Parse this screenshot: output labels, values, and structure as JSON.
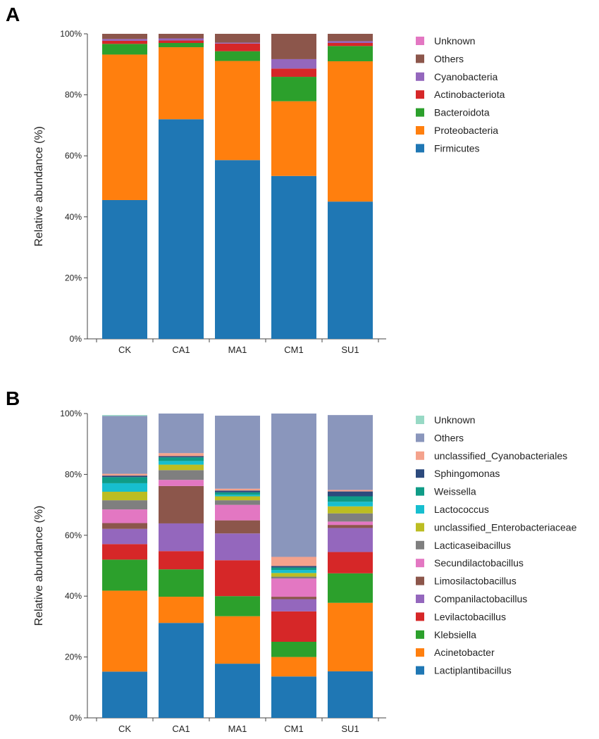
{
  "chart_data": [
    {
      "panel": "A",
      "type": "bar",
      "stacked": true,
      "ylabel": "Relative abundance (%)",
      "ylim": [
        0,
        100
      ],
      "yticks": [
        "0%",
        "20%",
        "40%",
        "60%",
        "80%",
        "100%"
      ],
      "categories": [
        "CK",
        "CA1",
        "MA1",
        "CM1",
        "SU1"
      ],
      "legend_position": "right",
      "series": [
        {
          "name": "Firmicutes",
          "color": "#1f77b4",
          "values": [
            45.5,
            72.0,
            58.6,
            53.4,
            45.0
          ]
        },
        {
          "name": "Proteobacteria",
          "color": "#ff7f0e",
          "values": [
            47.7,
            23.6,
            32.5,
            24.5,
            46.0
          ]
        },
        {
          "name": "Bacteroidota",
          "color": "#2ca02c",
          "values": [
            3.5,
            1.4,
            3.2,
            8.0,
            5.0
          ]
        },
        {
          "name": "Actinobacteriota",
          "color": "#d62728",
          "values": [
            1.0,
            0.8,
            2.5,
            2.7,
            1.0
          ]
        },
        {
          "name": "Cyanobacteria",
          "color": "#9467bd",
          "values": [
            0.6,
            0.7,
            0.3,
            3.1,
            0.6
          ]
        },
        {
          "name": "Others",
          "color": "#8c564b",
          "values": [
            1.7,
            1.5,
            2.9,
            8.3,
            2.4
          ]
        },
        {
          "name": "Unknown",
          "color": "#e377c2",
          "values": [
            0,
            0,
            0,
            0,
            0
          ]
        }
      ]
    },
    {
      "panel": "B",
      "type": "bar",
      "stacked": true,
      "ylabel": "Relative abundance (%)",
      "ylim": [
        0,
        100
      ],
      "yticks": [
        "0%",
        "20%",
        "40%",
        "60%",
        "80%",
        "100%"
      ],
      "categories": [
        "CK",
        "CA1",
        "MA1",
        "CM1",
        "SU1"
      ],
      "legend_position": "right",
      "series": [
        {
          "name": "Lactiplantibacillus",
          "color": "#1f77b4",
          "values": [
            15.2,
            31.2,
            17.8,
            13.6,
            15.3
          ]
        },
        {
          "name": "Acinetobacter",
          "color": "#ff7f0e",
          "values": [
            26.6,
            8.6,
            15.6,
            6.4,
            22.5
          ]
        },
        {
          "name": "Klebsiella",
          "color": "#2ca02c",
          "values": [
            10.2,
            9.0,
            6.6,
            5.0,
            9.7
          ]
        },
        {
          "name": "Levilactobacillus",
          "color": "#d62728",
          "values": [
            5.1,
            6.0,
            11.8,
            10.0,
            7.0
          ]
        },
        {
          "name": "Companilactobacillus",
          "color": "#9467bd",
          "values": [
            5.0,
            9.1,
            8.8,
            4.0,
            7.9
          ]
        },
        {
          "name": "Limosilactobacillus",
          "color": "#8c564b",
          "values": [
            1.9,
            12.3,
            4.3,
            0.8,
            1.0
          ]
        },
        {
          "name": "Secundilactobacillus",
          "color": "#e377c2",
          "values": [
            4.5,
            2.0,
            5.1,
            6.0,
            1.1
          ]
        },
        {
          "name": "Lacticaseibacillus",
          "color": "#7f7f7f",
          "values": [
            3.0,
            3.2,
            1.5,
            0.6,
            2.7
          ]
        },
        {
          "name": "unclassified_Enterobacteriaceae",
          "color": "#bcbd22",
          "values": [
            2.8,
            1.8,
            1.3,
            1.2,
            2.3
          ]
        },
        {
          "name": "Lactococcus",
          "color": "#17becf",
          "values": [
            2.8,
            1.2,
            0.5,
            1.0,
            1.5
          ]
        },
        {
          "name": "Weissella",
          "color": "#0f9c87",
          "values": [
            2.0,
            1.2,
            0.8,
            0.8,
            1.8
          ]
        },
        {
          "name": "Sphingomonas",
          "color": "#2c4a7d",
          "values": [
            0.5,
            0.4,
            0.6,
            0.5,
            1.6
          ]
        },
        {
          "name": "unclassified_Cyanobacteriales",
          "color": "#f4a28c",
          "values": [
            0.6,
            1.0,
            0.6,
            3.0,
            0.5
          ]
        },
        {
          "name": "Others",
          "color": "#8a96bc",
          "values": [
            19.0,
            13.0,
            24.0,
            47.1,
            24.6
          ]
        },
        {
          "name": "Unknown",
          "color": "#98d9c5",
          "values": [
            0.3,
            0.0,
            0.0,
            0.0,
            0.0
          ]
        }
      ]
    }
  ]
}
